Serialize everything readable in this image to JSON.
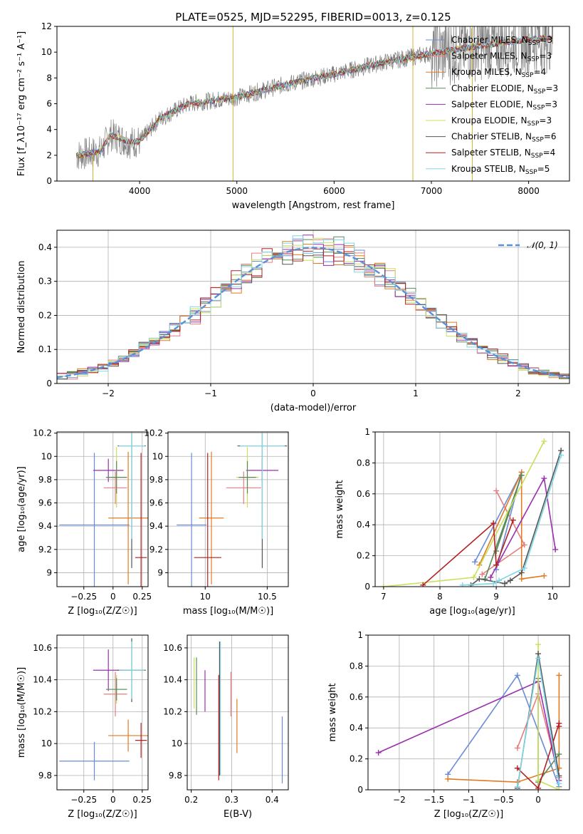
{
  "figure_title": "PLATE=0525, MJD=52295, FIBERID=0013, z=0.125",
  "colors": {
    "Chabrier MILES": "#6a8bd6",
    "Salpeter MILES": "#e87d7d",
    "Kroupa MILES": "#e07b22",
    "Chabrier ELODIE": "#5a8a5a",
    "Salpeter ELODIE": "#9b2fae",
    "Kroupa ELODIE": "#c8e05a",
    "Chabrier STELIB": "#555555",
    "Salpeter STELIB": "#b22222",
    "Kroupa STELIB": "#7fd6e6",
    "data": "#808080",
    "normal": "#5b8fd9"
  },
  "legend": [
    {
      "base": "Chabrier MILES",
      "n": "3"
    },
    {
      "base": "Salpeter MILES",
      "n": "3"
    },
    {
      "base": "Kroupa MILES",
      "n": "4"
    },
    {
      "base": "Chabrier ELODIE",
      "n": "3"
    },
    {
      "base": "Salpeter ELODIE",
      "n": "3"
    },
    {
      "base": "Kroupa ELODIE",
      "n": "3"
    },
    {
      "base": "Chabrier STELIB",
      "n": "6"
    },
    {
      "base": "Salpeter STELIB",
      "n": "4"
    },
    {
      "base": "Kroupa STELIB",
      "n": "5"
    }
  ],
  "chart_data": [
    {
      "type": "line",
      "name": "spectrum",
      "xlabel": "wavelength [Angstrom, rest frame]",
      "ylabel": "Flux [f_λ10⁻¹⁷ erg cm⁻² s⁻¹ A⁻¹]",
      "xlim": [
        3150,
        8420
      ],
      "ylim": [
        0,
        12
      ],
      "xticks": [
        4000,
        5000,
        6000,
        7000,
        8000
      ],
      "yticks": [
        0,
        2,
        4,
        6,
        8,
        10,
        12
      ],
      "grid": false,
      "legend_position": "right",
      "continuum": {
        "x": [
          3350,
          3600,
          3700,
          3900,
          4000,
          4200,
          4500,
          5000,
          5500,
          6000,
          6500,
          7000,
          7500,
          8000,
          8250
        ],
        "y": [
          2.0,
          2.3,
          3.6,
          3.0,
          3.1,
          4.8,
          6.0,
          6.5,
          7.5,
          8.3,
          9.2,
          9.9,
          10.5,
          11.0,
          11.1
        ]
      }
    },
    {
      "type": "line",
      "name": "residual histogram",
      "xlabel": "(data-model)/error",
      "ylabel": "Normed distribution",
      "xlim": [
        -2.5,
        2.5
      ],
      "ylim": [
        0,
        0.45
      ],
      "xticks": [
        -2,
        -1,
        0,
        1,
        2
      ],
      "yticks": [
        0.0,
        0.1,
        0.2,
        0.3,
        0.4
      ],
      "grid": true,
      "legend_position": "top-right",
      "normal_label": "𝒩(0, 1)"
    },
    {
      "type": "scatter",
      "name": "age vs Z",
      "xlabel": "Z [log₁₀(Z/Z☉)]",
      "ylabel": "age  [log₁₀(age/yr)]",
      "xlim": [
        -0.48,
        0.3
      ],
      "ylim": [
        8.88,
        10.21
      ],
      "xticks": [
        -0.25,
        0.0,
        0.25
      ],
      "yticks": [
        9.0,
        9.2,
        9.4,
        9.6,
        9.8,
        10.0,
        10.2
      ],
      "grid": true,
      "points": [
        {
          "model": "Chabrier MILES",
          "x": -0.16,
          "y": 9.41,
          "xerr": 0.3,
          "yerr": 0.62
        },
        {
          "model": "Kroupa MILES",
          "x": 0.13,
          "y": 9.47,
          "xerr": 0.17,
          "yerr": 0.57
        },
        {
          "model": "Salpeter MILES",
          "x": 0.02,
          "y": 9.73,
          "xerr": 0.1,
          "yerr": 0.14
        },
        {
          "model": "Salpeter ELODIE",
          "x": -0.04,
          "y": 9.88,
          "xerr": 0.13,
          "yerr": 0.1
        },
        {
          "model": "Kroupa ELODIE",
          "x": 0.03,
          "y": 9.82,
          "xerr": 0.09,
          "yerr": 0.26
        },
        {
          "model": "Chabrier ELODIE",
          "x": 0.03,
          "y": 9.82,
          "xerr": 0.09,
          "yerr": 0.14
        },
        {
          "model": "Chabrier STELIB",
          "x": 0.16,
          "y": 10.09,
          "xerr": 0.12,
          "yerr": 1.05
        },
        {
          "model": "Kroupa STELIB",
          "x": 0.16,
          "y": 10.09,
          "xerr": 0.11,
          "yerr": 0.8
        },
        {
          "model": "Salpeter STELIB",
          "x": 0.24,
          "y": 9.13,
          "xerr": 0.05,
          "yerr": 0.9
        }
      ]
    },
    {
      "type": "scatter",
      "name": "age vs mass",
      "xlabel": "mass [log₁₀(M/M☉)]",
      "ylabel": "",
      "xlim": [
        9.7,
        10.67
      ],
      "ylim": [
        8.88,
        10.21
      ],
      "xticks": [
        10.0,
        10.5
      ],
      "yticks": [
        9.0,
        9.2,
        9.4,
        9.6,
        9.8,
        10.0,
        10.2
      ],
      "grid": true,
      "points": [
        {
          "model": "Chabrier MILES",
          "x": 9.89,
          "y": 9.41,
          "xerr": 0.12,
          "yerr": 0.62
        },
        {
          "model": "Kroupa MILES",
          "x": 10.05,
          "y": 9.47,
          "xerr": 0.1,
          "yerr": 0.57
        },
        {
          "model": "Salpeter MILES",
          "x": 10.31,
          "y": 9.73,
          "xerr": 0.14,
          "yerr": 0.14
        },
        {
          "model": "Salpeter ELODIE",
          "x": 10.46,
          "y": 9.88,
          "xerr": 0.13,
          "yerr": 0.1
        },
        {
          "model": "Kroupa ELODIE",
          "x": 10.34,
          "y": 9.82,
          "xerr": 0.09,
          "yerr": 0.26
        },
        {
          "model": "Chabrier ELODIE",
          "x": 10.34,
          "y": 9.82,
          "xerr": 0.07,
          "yerr": 0.14
        },
        {
          "model": "Chabrier STELIB",
          "x": 10.46,
          "y": 10.09,
          "xerr": 0.2,
          "yerr": 1.05
        },
        {
          "model": "Kroupa STELIB",
          "x": 10.46,
          "y": 10.09,
          "xerr": 0.18,
          "yerr": 0.8
        },
        {
          "model": "Salpeter STELIB",
          "x": 10.02,
          "y": 9.13,
          "xerr": 0.11,
          "yerr": 0.9
        }
      ]
    },
    {
      "type": "line",
      "name": "mass weight vs age",
      "xlabel": "age  [log₁₀(age/yr)]",
      "ylabel": "mass weight",
      "xlim": [
        6.85,
        10.3
      ],
      "ylim": [
        0,
        1
      ],
      "xticks": [
        7,
        8,
        9,
        10
      ],
      "yticks": [
        0.0,
        0.2,
        0.4,
        0.6,
        0.8,
        1.0
      ],
      "grid": true,
      "series": [
        {
          "model": "Chabrier MILES",
          "x": [
            8.62,
            9.45,
            9.0
          ],
          "y": [
            0.16,
            0.74,
            0.11
          ]
        },
        {
          "model": "Salpeter MILES",
          "x": [
            8.75,
            9.5,
            9.0
          ],
          "y": [
            0.08,
            0.27,
            0.62
          ]
        },
        {
          "model": "Kroupa MILES",
          "x": [
            8.7,
            9.45,
            9.45,
            9.85
          ],
          "y": [
            0.14,
            0.74,
            0.05,
            0.07
          ]
        },
        {
          "model": "Chabrier ELODIE",
          "x": [
            8.8,
            9.45,
            9.0
          ],
          "y": [
            0.05,
            0.72,
            0.23
          ]
        },
        {
          "model": "Salpeter ELODIE",
          "x": [
            8.9,
            9.85,
            10.05
          ],
          "y": [
            0.06,
            0.7,
            0.24
          ]
        },
        {
          "model": "Kroupa ELODIE",
          "x": [
            7.0,
            8.6,
            9.85
          ],
          "y": [
            0.0,
            0.06,
            0.94
          ]
        },
        {
          "model": "Chabrier STELIB",
          "x": [
            8.55,
            8.7,
            9.15,
            9.25,
            9.45,
            10.15
          ],
          "y": [
            0.01,
            0.05,
            0.02,
            0.04,
            0.09,
            0.88
          ]
        },
        {
          "model": "Salpeter STELIB",
          "x": [
            7.7,
            8.95,
            9.0,
            9.3
          ],
          "y": [
            0.01,
            0.41,
            0.14,
            0.43
          ]
        },
        {
          "model": "Kroupa STELIB",
          "x": [
            8.4,
            8.95,
            9.05,
            9.5,
            10.15
          ],
          "y": [
            0.01,
            0.02,
            0.04,
            0.12,
            0.85
          ]
        }
      ]
    },
    {
      "type": "scatter",
      "name": "mass vs Z",
      "xlabel": "Z [log₁₀(Z/Z☉)]",
      "ylabel": "mass [log₁₀(M/M☉)]",
      "xlim": [
        -0.48,
        0.3
      ],
      "ylim": [
        9.71,
        10.68
      ],
      "xticks": [
        -0.25,
        0.0,
        0.25
      ],
      "yticks": [
        9.8,
        10.0,
        10.2,
        10.4,
        10.6
      ],
      "grid": true,
      "points": [
        {
          "model": "Chabrier MILES",
          "x": -0.16,
          "y": 9.89,
          "xerr": 0.3,
          "yerr": 0.12
        },
        {
          "model": "Kroupa MILES",
          "x": 0.13,
          "y": 10.05,
          "xerr": 0.17,
          "yerr": 0.1
        },
        {
          "model": "Salpeter MILES",
          "x": 0.02,
          "y": 10.31,
          "xerr": 0.1,
          "yerr": 0.14
        },
        {
          "model": "Salpeter ELODIE",
          "x": -0.04,
          "y": 10.46,
          "xerr": 0.13,
          "yerr": 0.13
        },
        {
          "model": "Kroupa ELODIE",
          "x": 0.03,
          "y": 10.34,
          "xerr": 0.09,
          "yerr": 0.09
        },
        {
          "model": "Chabrier ELODIE",
          "x": 0.03,
          "y": 10.34,
          "xerr": 0.09,
          "yerr": 0.07
        },
        {
          "model": "Chabrier STELIB",
          "x": 0.16,
          "y": 10.46,
          "xerr": 0.12,
          "yerr": 0.2
        },
        {
          "model": "Kroupa STELIB",
          "x": 0.16,
          "y": 10.46,
          "xerr": 0.11,
          "yerr": 0.18
        },
        {
          "model": "Salpeter STELIB",
          "x": 0.24,
          "y": 10.02,
          "xerr": 0.05,
          "yerr": 0.11
        }
      ]
    },
    {
      "type": "scatter",
      "name": "mass vs E(B-V)",
      "xlabel": "E(B-V)",
      "ylabel": "",
      "xlim": [
        0.19,
        0.44
      ],
      "ylim": [
        9.71,
        10.68
      ],
      "xticks": [
        0.2,
        0.3,
        0.4
      ],
      "yticks": [
        9.8,
        10.0,
        10.2,
        10.4,
        10.6
      ],
      "grid": true,
      "points": [
        {
          "model": "Chabrier MILES",
          "x": 0.425,
          "y": 9.96,
          "xerr": 0.0,
          "yerr": 0.21
        },
        {
          "model": "Kroupa MILES",
          "x": 0.313,
          "y": 10.11,
          "xerr": 0.0,
          "yerr": 0.17
        },
        {
          "model": "Salpeter MILES",
          "x": 0.298,
          "y": 10.31,
          "xerr": 0.0,
          "yerr": 0.14
        },
        {
          "model": "Salpeter ELODIE",
          "x": 0.234,
          "y": 10.33,
          "xerr": 0.0,
          "yerr": 0.13
        },
        {
          "model": "Kroupa ELODIE",
          "x": 0.207,
          "y": 10.38,
          "xerr": 0.0,
          "yerr": 0.16
        },
        {
          "model": "Chabrier ELODIE",
          "x": 0.213,
          "y": 10.36,
          "xerr": 0.0,
          "yerr": 0.18
        },
        {
          "model": "Chabrier STELIB",
          "x": 0.27,
          "y": 10.22,
          "xerr": 0.0,
          "yerr": 0.42
        },
        {
          "model": "Kroupa STELIB",
          "x": 0.272,
          "y": 10.22,
          "xerr": 0.0,
          "yerr": 0.42
        },
        {
          "model": "Salpeter STELIB",
          "x": 0.268,
          "y": 10.1,
          "xerr": 0.0,
          "yerr": 0.33
        }
      ]
    },
    {
      "type": "line",
      "name": "mass weight vs Z",
      "xlabel": "Z [log₁₀(Z/Z☉)]",
      "ylabel": "mass weight",
      "xlim": [
        -2.45,
        0.45
      ],
      "ylim": [
        0,
        1
      ],
      "xticks": [
        -2.0,
        -1.5,
        -1.0,
        -0.5,
        0.0
      ],
      "yticks": [
        0.0,
        0.2,
        0.4,
        0.6,
        0.8,
        1.0
      ],
      "grid": true,
      "series": [
        {
          "model": "Chabrier MILES",
          "x": [
            -1.3,
            -0.3,
            0.3
          ],
          "y": [
            0.1,
            0.74,
            0.02
          ]
        },
        {
          "model": "Salpeter MILES",
          "x": [
            -0.3,
            0.0,
            0.3
          ],
          "y": [
            0.27,
            0.62,
            0.08
          ]
        },
        {
          "model": "Kroupa MILES",
          "x": [
            -1.3,
            -0.3,
            0.3,
            0.3
          ],
          "y": [
            0.07,
            0.05,
            0.14,
            0.74
          ]
        },
        {
          "model": "Chabrier ELODIE",
          "x": [
            0.0,
            0.0,
            0.3
          ],
          "y": [
            0.72,
            0.05,
            0.23
          ]
        },
        {
          "model": "Salpeter ELODIE",
          "x": [
            -2.3,
            0.0,
            0.3
          ],
          "y": [
            0.24,
            0.7,
            0.06
          ]
        },
        {
          "model": "Kroupa ELODIE",
          "x": [
            0.0,
            0.0,
            0.3
          ],
          "y": [
            0.94,
            0.06,
            0.0
          ]
        },
        {
          "model": "Chabrier STELIB",
          "x": [
            -0.3,
            0.0,
            0.3
          ],
          "y": [
            0.01,
            0.88,
            0.09
          ]
        },
        {
          "model": "Salpeter STELIB",
          "x": [
            -0.3,
            0.0,
            0.3,
            0.3
          ],
          "y": [
            0.14,
            0.01,
            0.43,
            0.41
          ]
        },
        {
          "model": "Kroupa STELIB",
          "x": [
            -0.3,
            0.0,
            0.3
          ],
          "y": [
            0.02,
            0.85,
            0.04
          ]
        }
      ]
    }
  ]
}
